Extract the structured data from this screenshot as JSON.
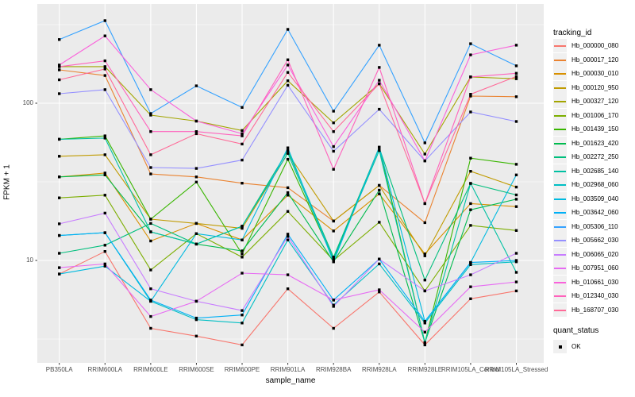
{
  "chart_data": {
    "type": "line",
    "xlabel": "sample_name",
    "ylabel": "FPKM + 1",
    "y_scale": "log10",
    "ylim": [
      2.1,
      430
    ],
    "grid": true,
    "panel_bg": "#EBEBEB",
    "grid_color": "#FFFFFF",
    "point_color": "#000000",
    "y_ticks": [
      {
        "label": "100",
        "value": 100
      },
      {
        "label": "10",
        "value": 10
      }
    ],
    "y_minor_breaks": [
      3.162,
      31.62,
      316.2
    ],
    "categories": [
      "PB350LA",
      "RRIM600LA",
      "RRIM600LE",
      "RRIM600SE",
      "RRIM600PE",
      "RRIM901LA",
      "RRIM928BA",
      "RRIM928LA",
      "RRIM928LE",
      "RRIM105LA_Control",
      "RRIM105LA_Stressed"
    ],
    "legend_title": "tracking_id",
    "series": [
      {
        "name": "Hb_000000_080",
        "color": "#F8766D",
        "values": [
          8.2,
          11.4,
          3.7,
          3.3,
          2.9,
          6.6,
          3.7,
          6.3,
          2.9,
          5.7,
          6.4
        ]
      },
      {
        "name": "Hb_000017_120",
        "color": "#EA8331",
        "values": [
          163,
          150,
          35.5,
          34,
          31,
          29,
          17.8,
          30,
          17.4,
          111,
          110
        ]
      },
      {
        "name": "Hb_000030_010",
        "color": "#D89000",
        "values": [
          34,
          36,
          13.3,
          17.2,
          13.5,
          26,
          15.4,
          26.5,
          11,
          23,
          22
        ]
      },
      {
        "name": "Hb_000120_950",
        "color": "#C09B00",
        "values": [
          46,
          47,
          18.3,
          17.2,
          16,
          48,
          17.8,
          30,
          10.7,
          36.9,
          29.3
        ]
      },
      {
        "name": "Hb_000327_120",
        "color": "#A3A500",
        "values": [
          171,
          171,
          84,
          77,
          67,
          139,
          75,
          133,
          47.5,
          147,
          143
        ]
      },
      {
        "name": "Hb_001006_170",
        "color": "#7CAE00",
        "values": [
          25,
          26,
          8.7,
          14.8,
          10.5,
          20.5,
          10,
          17.5,
          6.4,
          16.7,
          15.5
        ]
      },
      {
        "name": "Hb_001439_150",
        "color": "#39B600",
        "values": [
          59,
          62,
          18.3,
          31.5,
          11,
          44,
          10.2,
          52.5,
          3.0,
          44.7,
          40.9
        ]
      },
      {
        "name": "Hb_001623_420",
        "color": "#00BB4E",
        "values": [
          34,
          35,
          15.2,
          12.7,
          11.5,
          27,
          9.8,
          28,
          3.0,
          21,
          24.5
        ]
      },
      {
        "name": "Hb_002272_250",
        "color": "#00BF7D",
        "values": [
          11.1,
          12.5,
          17.2,
          12.7,
          16.5,
          50,
          10.5,
          52,
          7.5,
          30.9,
          26.1
        ]
      },
      {
        "name": "Hb_002685_140",
        "color": "#00C1A3",
        "values": [
          59,
          60,
          15.2,
          12.7,
          16.5,
          48,
          10.2,
          50,
          3.0,
          30.9,
          8.4
        ]
      },
      {
        "name": "Hb_002968_060",
        "color": "#00BFC4",
        "values": [
          14.4,
          15,
          5.5,
          4.2,
          4.0,
          13.5,
          5.2,
          9.5,
          4.0,
          9.4,
          9.8
        ]
      },
      {
        "name": "Hb_003509_040",
        "color": "#00BAE0",
        "values": [
          8.2,
          9.2,
          5.5,
          14.8,
          13.5,
          52,
          9.8,
          52.5,
          4.1,
          9.7,
          35
        ]
      },
      {
        "name": "Hb_003642_060",
        "color": "#00B0F6",
        "values": [
          14.4,
          15,
          5.6,
          4.3,
          4.5,
          14.7,
          5.6,
          10.2,
          4.1,
          9.7,
          10
        ]
      },
      {
        "name": "Hb_005306_110",
        "color": "#35A2FF",
        "values": [
          254,
          335,
          86,
          129,
          94,
          295,
          89,
          234,
          56,
          239,
          173
        ]
      },
      {
        "name": "Hb_005662_030",
        "color": "#9590FF",
        "values": [
          115,
          122,
          39,
          38.5,
          43.5,
          130,
          49.5,
          91.5,
          43,
          88,
          76.5
        ]
      },
      {
        "name": "Hb_006065_020",
        "color": "#C77CFF",
        "values": [
          17.1,
          20,
          6.6,
          5.5,
          4.8,
          14.2,
          5.1,
          10.2,
          6.4,
          8.1,
          11.1
        ]
      },
      {
        "name": "Hb_007951_060",
        "color": "#E76BF3",
        "values": [
          9.0,
          9.5,
          4.4,
          5.5,
          8.3,
          8.1,
          5.6,
          6.5,
          3.5,
          6.8,
          7.3
        ]
      },
      {
        "name": "Hb_010661_030",
        "color": "#FA62DB",
        "values": [
          175,
          268,
          122,
          77,
          64,
          175,
          53,
          140,
          43,
          203,
          234
        ]
      },
      {
        "name": "Hb_012340_030",
        "color": "#FF62BC",
        "values": [
          171,
          186,
          66,
          66,
          62,
          189,
          38,
          169,
          23,
          147,
          155
        ]
      },
      {
        "name": "Hb_168707_030",
        "color": "#FF6A98",
        "values": [
          141,
          165,
          47,
          64,
          55,
          157,
          66,
          133,
          23,
          114,
          148
        ]
      }
    ],
    "quant_legend": {
      "title": "quant_status",
      "entries": [
        {
          "label": "OK",
          "marker": "black-square"
        }
      ]
    }
  }
}
